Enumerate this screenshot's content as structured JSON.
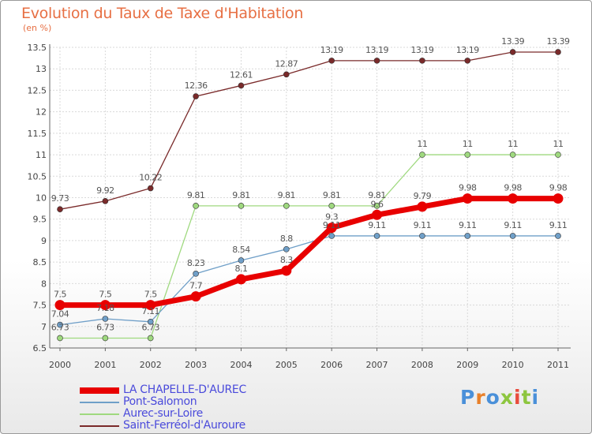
{
  "chart_data": {
    "type": "line",
    "title": "Evolution du Taux de Taxe d'Habitation",
    "ylabel": "(en %)",
    "xlabel": "",
    "categories": [
      "2000",
      "2001",
      "2002",
      "2003",
      "2004",
      "2005",
      "2006",
      "2007",
      "2008",
      "2009",
      "2010",
      "2011"
    ],
    "ylim": [
      6.5,
      13.5
    ],
    "yticks": [
      "6.5",
      "7",
      "7.5",
      "8",
      "8.5",
      "9",
      "9.5",
      "10",
      "10.5",
      "11",
      "11.5",
      "12",
      "12.5",
      "13",
      "13.5"
    ],
    "grid": true,
    "legend_position": "bottom-left",
    "series": [
      {
        "name": "LA CHAPELLE-D'AUREC",
        "color": "#e80000",
        "values": [
          7.5,
          7.5,
          7.5,
          7.7,
          8.1,
          8.3,
          9.3,
          9.6,
          9.79,
          9.98,
          9.98,
          9.98
        ],
        "labels": [
          "7.5",
          "7.5",
          "7.5",
          "7.7",
          "8.1",
          "8.3",
          "9.3",
          "9.6",
          "9.79",
          "9.98",
          "9.98",
          "9.98"
        ]
      },
      {
        "name": "Pont-Salomon",
        "color": "#6f9fc8",
        "values": [
          7.04,
          7.18,
          7.11,
          8.23,
          8.54,
          8.8,
          9.11,
          9.11,
          9.11,
          9.11,
          9.11,
          9.11
        ],
        "labels": [
          "7.04",
          "7.18",
          "7.11",
          "8.23",
          "8.54",
          "8.8",
          "9.11",
          "9.11",
          "9.11",
          "9.11",
          "9.11",
          "9.11"
        ]
      },
      {
        "name": "Aurec-sur-Loire",
        "color": "#9fd97f",
        "values": [
          6.73,
          6.73,
          6.73,
          9.81,
          9.81,
          9.81,
          9.81,
          9.81,
          11,
          11,
          11,
          11
        ],
        "labels": [
          "6.73",
          "6.73",
          "6.73",
          "9.81",
          "9.81",
          "9.81",
          "9.81",
          "9.81",
          "11",
          "11",
          "11",
          "11"
        ]
      },
      {
        "name": "Saint-Ferréol-d'Auroure",
        "color": "#7a2a2a",
        "values": [
          9.73,
          9.92,
          10.22,
          12.36,
          12.61,
          12.87,
          13.19,
          13.19,
          13.19,
          13.19,
          13.39,
          13.39
        ],
        "labels": [
          "9.73",
          "9.92",
          "10.22",
          "12.36",
          "12.61",
          "12.87",
          "13.19",
          "13.19",
          "13.19",
          "13.19",
          "13.39",
          "13.39"
        ]
      }
    ]
  },
  "logo": {
    "text": "Proxiti",
    "letters": [
      "P",
      "r",
      "o",
      "x",
      "i",
      "t",
      "i"
    ],
    "colors": [
      "#4a90d9",
      "#e8802a",
      "#4a90d9",
      "#8dc63f",
      "#e84c3d",
      "#8dc63f",
      "#4a90d9"
    ]
  }
}
